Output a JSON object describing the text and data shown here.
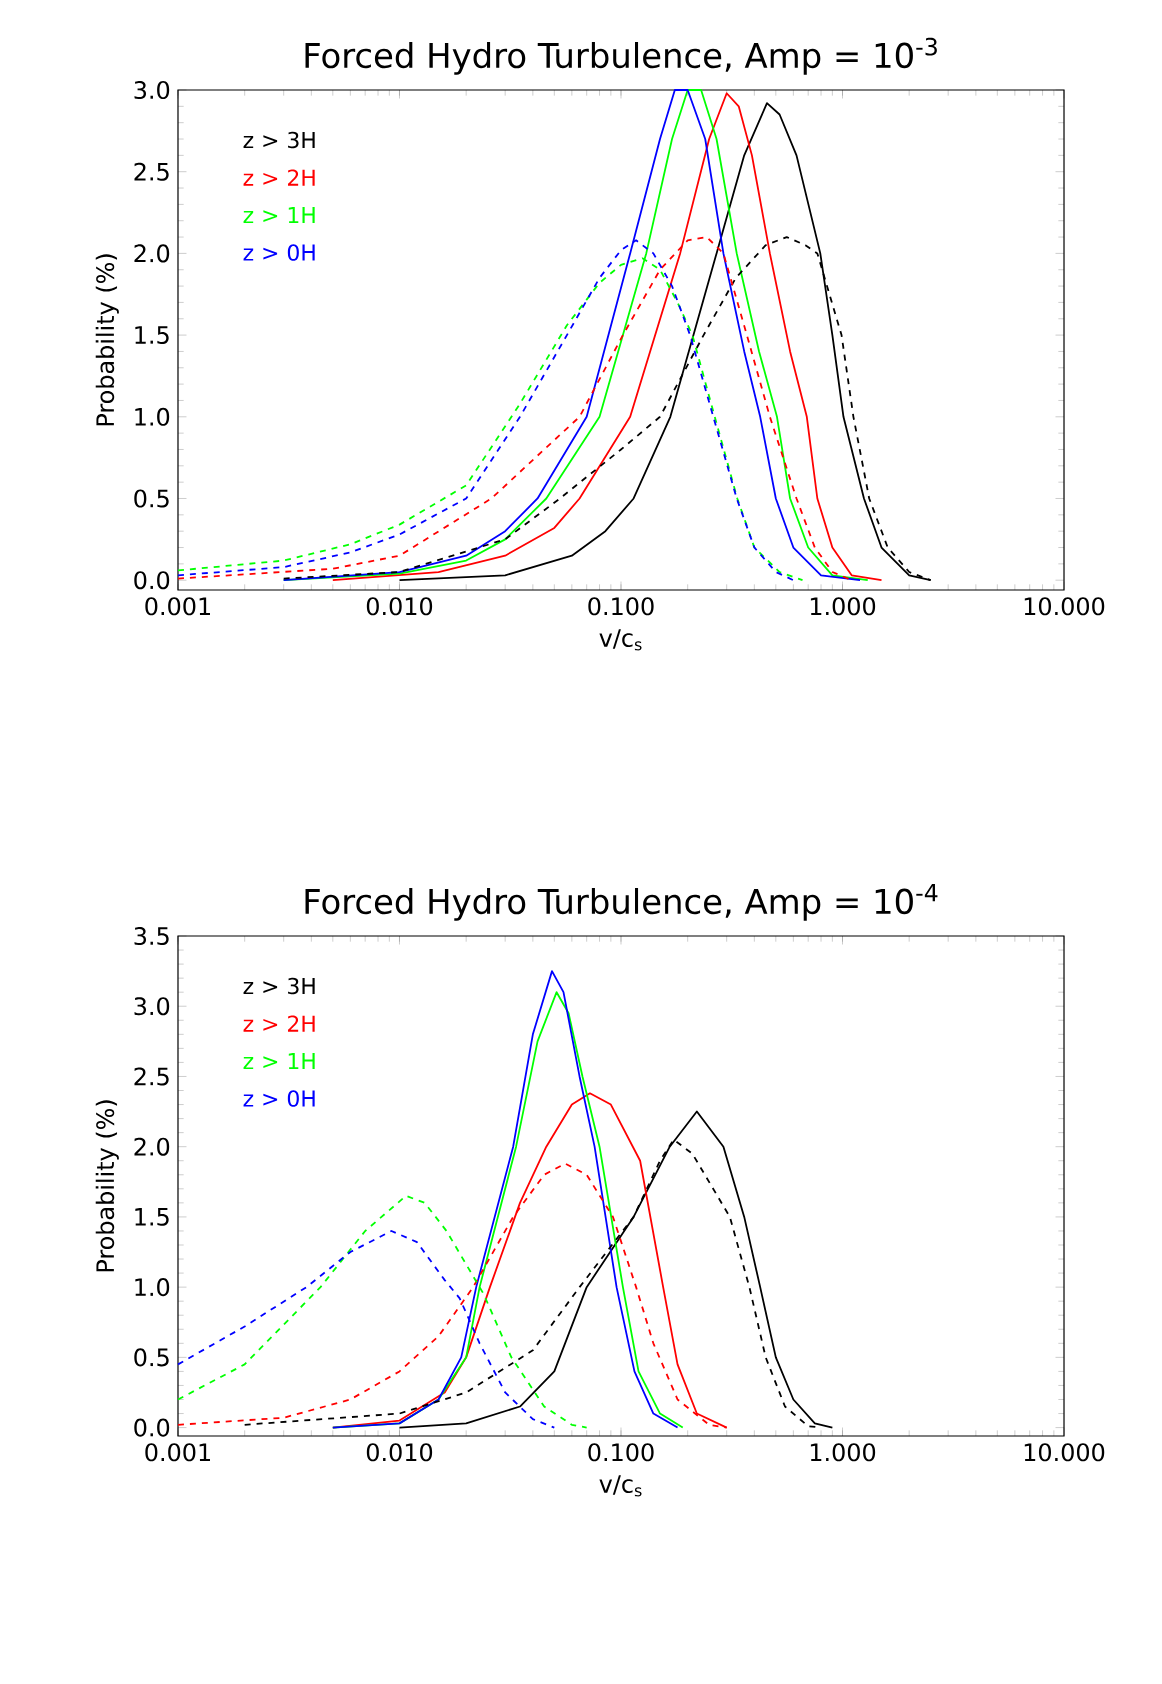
{
  "chart_data": [
    {
      "type": "line",
      "title": "Forced Hydro Turbulence, Amp = 10$^{-3}$",
      "xlabel": "v/c$_{s}$",
      "ylabel": "Probability (%)",
      "log": "x",
      "xlim": [
        0.001,
        10
      ],
      "ylim": [
        -0.06,
        3.0
      ],
      "xticks": [
        {
          "value": 0.001,
          "label": "0.001"
        },
        {
          "value": 0.01,
          "label": "0.010"
        },
        {
          "value": 0.1,
          "label": "0.100"
        },
        {
          "value": 1,
          "label": "1.000"
        },
        {
          "value": 10,
          "label": "10.000"
        }
      ],
      "yticks": [
        {
          "value": 0,
          "label": "0.0"
        },
        {
          "value": 0.5,
          "label": "0.5"
        },
        {
          "value": 1,
          "label": "1.0"
        },
        {
          "value": 1.5,
          "label": "1.5"
        },
        {
          "value": 2,
          "label": "2.0"
        },
        {
          "value": 2.5,
          "label": "2.5"
        },
        {
          "value": 3,
          "label": "3.0"
        }
      ],
      "legend": "top left",
      "grid": false,
      "marker": "none",
      "series": [
        {
          "name": "z > 3H",
          "color": "#000000",
          "line_style": "solid",
          "x": [
            0.01,
            0.03,
            0.06,
            0.085,
            0.114,
            0.167,
            0.27,
            0.36,
            0.456,
            0.52,
            0.62,
            0.794,
            0.9,
            1.01,
            1.25,
            1.5,
            2.0,
            2.5
          ],
          "values": [
            0,
            0.03,
            0.15,
            0.3,
            0.5,
            1.0,
            2.0,
            2.6,
            2.92,
            2.85,
            2.6,
            2.0,
            1.5,
            1.0,
            0.5,
            0.2,
            0.03,
            0
          ]
        },
        {
          "name": "z > 2H",
          "color": "#ff0000",
          "line_style": "solid",
          "x": [
            0.005,
            0.015,
            0.03,
            0.05,
            0.065,
            0.11,
            0.185,
            0.25,
            0.3,
            0.34,
            0.39,
            0.47,
            0.58,
            0.69,
            0.77,
            0.9,
            1.1,
            1.5
          ],
          "values": [
            0,
            0.05,
            0.15,
            0.32,
            0.5,
            1.0,
            2.0,
            2.7,
            2.98,
            2.9,
            2.6,
            2.0,
            1.4,
            1.0,
            0.5,
            0.2,
            0.03,
            0
          ]
        },
        {
          "name": "z > 1H",
          "color": "#00ff00",
          "line_style": "solid",
          "x": [
            0.003,
            0.01,
            0.02,
            0.03,
            0.046,
            0.08,
            0.13,
            0.17,
            0.2,
            0.23,
            0.27,
            0.333,
            0.42,
            0.506,
            0.58,
            0.7,
            0.9,
            1.3
          ],
          "values": [
            0,
            0.04,
            0.12,
            0.25,
            0.5,
            1.0,
            2.0,
            2.7,
            3.0,
            3.0,
            2.7,
            2.0,
            1.4,
            1.0,
            0.5,
            0.2,
            0.03,
            0
          ]
        },
        {
          "name": "z > 0H",
          "color": "#0000ff",
          "line_style": "solid",
          "x": [
            0.003,
            0.01,
            0.02,
            0.03,
            0.042,
            0.07,
            0.11,
            0.15,
            0.175,
            0.2,
            0.24,
            0.29,
            0.36,
            0.425,
            0.5,
            0.6,
            0.8,
            1.2
          ],
          "values": [
            0,
            0.05,
            0.15,
            0.3,
            0.5,
            1.0,
            2.0,
            2.7,
            3.0,
            3.0,
            2.7,
            2.0,
            1.4,
            1.0,
            0.5,
            0.2,
            0.03,
            0
          ]
        },
        {
          "color": "#000000",
          "line_style": "dashed",
          "x": [
            0.003,
            0.01,
            0.03,
            0.053,
            0.1,
            0.15,
            0.236,
            0.33,
            0.45,
            0.56,
            0.68,
            0.77,
            0.99,
            1.12,
            1.32,
            1.6,
            2.0,
            2.5
          ],
          "values": [
            0.01,
            0.05,
            0.25,
            0.5,
            0.8,
            1.0,
            1.5,
            1.85,
            2.05,
            2.1,
            2.05,
            2.0,
            1.5,
            1.0,
            0.5,
            0.2,
            0.05,
            0
          ]
        },
        {
          "color": "#ff0000",
          "line_style": "dashed",
          "x": [
            0.001,
            0.005,
            0.01,
            0.026,
            0.045,
            0.065,
            0.102,
            0.15,
            0.2,
            0.244,
            0.29,
            0.37,
            0.47,
            0.62,
            0.75,
            0.9,
            1.1
          ],
          "values": [
            0.01,
            0.07,
            0.15,
            0.5,
            0.8,
            1.0,
            1.5,
            1.9,
            2.08,
            2.1,
            2.0,
            1.5,
            1.0,
            0.5,
            0.2,
            0.05,
            0
          ]
        },
        {
          "color": "#00ff00",
          "line_style": "dashed",
          "x": [
            0.001,
            0.003,
            0.006,
            0.01,
            0.02,
            0.035,
            0.057,
            0.08,
            0.1,
            0.125,
            0.15,
            0.18,
            0.21,
            0.265,
            0.335,
            0.4,
            0.52,
            0.66
          ],
          "values": [
            0.06,
            0.12,
            0.22,
            0.34,
            0.58,
            1.08,
            1.56,
            1.82,
            1.93,
            1.97,
            1.9,
            1.7,
            1.5,
            1.0,
            0.5,
            0.2,
            0.05,
            0
          ]
        },
        {
          "color": "#0000ff",
          "line_style": "dashed",
          "x": [
            0.001,
            0.003,
            0.006,
            0.01,
            0.02,
            0.035,
            0.057,
            0.08,
            0.1,
            0.117,
            0.14,
            0.17,
            0.205,
            0.261,
            0.333,
            0.4,
            0.5,
            0.6
          ],
          "values": [
            0.03,
            0.08,
            0.17,
            0.28,
            0.5,
            1.0,
            1.5,
            1.85,
            2.02,
            2.08,
            2.0,
            1.8,
            1.5,
            1.0,
            0.5,
            0.2,
            0.05,
            0
          ]
        }
      ]
    },
    {
      "type": "line",
      "title": "Forced Hydro Turbulence, Amp = 10$^{-4}$",
      "xlabel": "v/c$_{s}$",
      "ylabel": "Probability (%)",
      "log": "x",
      "xlim": [
        0.001,
        10
      ],
      "ylim": [
        -0.06,
        3.5
      ],
      "xticks": [
        {
          "value": 0.001,
          "label": "0.001"
        },
        {
          "value": 0.01,
          "label": "0.010"
        },
        {
          "value": 0.1,
          "label": "0.100"
        },
        {
          "value": 1,
          "label": "1.000"
        },
        {
          "value": 10,
          "label": "10.000"
        }
      ],
      "yticks": [
        {
          "value": 0,
          "label": "0.0"
        },
        {
          "value": 0.5,
          "label": "0.5"
        },
        {
          "value": 1,
          "label": "1.0"
        },
        {
          "value": 1.5,
          "label": "1.5"
        },
        {
          "value": 2,
          "label": "2.0"
        },
        {
          "value": 2.5,
          "label": "2.5"
        },
        {
          "value": 3,
          "label": "3.0"
        },
        {
          "value": 3.5,
          "label": "3.5"
        }
      ],
      "legend": "top left",
      "grid": false,
      "marker": "none",
      "series": [
        {
          "name": "z > 3H",
          "color": "#000000",
          "line_style": "solid",
          "x": [
            0.01,
            0.02,
            0.035,
            0.05,
            0.07,
            0.114,
            0.166,
            0.22,
            0.29,
            0.36,
            0.425,
            0.5,
            0.6,
            0.75,
            0.9
          ],
          "values": [
            0,
            0.03,
            0.15,
            0.4,
            1.0,
            1.5,
            2.0,
            2.25,
            2.0,
            1.5,
            1.0,
            0.5,
            0.2,
            0.03,
            0
          ]
        },
        {
          "name": "z > 2H",
          "color": "#ff0000",
          "line_style": "solid",
          "x": [
            0.005,
            0.01,
            0.016,
            0.02,
            0.0256,
            0.035,
            0.046,
            0.06,
            0.0724,
            0.09,
            0.122,
            0.155,
            0.18,
            0.22,
            0.3
          ],
          "values": [
            0,
            0.05,
            0.25,
            0.5,
            1.0,
            1.6,
            2.0,
            2.3,
            2.38,
            2.3,
            1.9,
            1.0,
            0.45,
            0.1,
            0
          ]
        },
        {
          "name": "z > 1H",
          "color": "#00ff00",
          "line_style": "solid",
          "x": [
            0.005,
            0.01,
            0.015,
            0.02,
            0.023,
            0.0336,
            0.042,
            0.0512,
            0.058,
            0.067,
            0.08,
            0.102,
            0.12,
            0.15,
            0.19
          ],
          "values": [
            0,
            0.03,
            0.2,
            0.5,
            1.0,
            2.0,
            2.75,
            3.1,
            2.95,
            2.5,
            2.0,
            1.0,
            0.4,
            0.1,
            0
          ]
        },
        {
          "name": "z > 0H",
          "color": "#0000ff",
          "line_style": "solid",
          "x": [
            0.005,
            0.01,
            0.015,
            0.019,
            0.0222,
            0.0326,
            0.04,
            0.0488,
            0.055,
            0.065,
            0.076,
            0.0955,
            0.115,
            0.14,
            0.18
          ],
          "values": [
            0,
            0.03,
            0.2,
            0.5,
            1.0,
            2.0,
            2.8,
            3.25,
            3.1,
            2.5,
            2.0,
            1.0,
            0.4,
            0.1,
            0
          ]
        },
        {
          "color": "#000000",
          "line_style": "dashed",
          "x": [
            0.002,
            0.01,
            0.02,
            0.04,
            0.065,
            0.114,
            0.15,
            0.173,
            0.21,
            0.31,
            0.38,
            0.45,
            0.55,
            0.7,
            0.8
          ],
          "values": [
            0.02,
            0.1,
            0.25,
            0.55,
            1.0,
            1.5,
            1.9,
            2.05,
            1.95,
            1.5,
            1.0,
            0.5,
            0.15,
            0.01,
            0
          ]
        },
        {
          "color": "#ff0000",
          "line_style": "dashed",
          "x": [
            0.001,
            0.003,
            0.006,
            0.01,
            0.015,
            0.0215,
            0.0326,
            0.045,
            0.056,
            0.07,
            0.092,
            0.117,
            0.14,
            0.18,
            0.25,
            0.3
          ],
          "values": [
            0.02,
            0.07,
            0.2,
            0.4,
            0.65,
            1.0,
            1.5,
            1.8,
            1.88,
            1.8,
            1.5,
            1.0,
            0.6,
            0.2,
            0.02,
            0
          ]
        },
        {
          "color": "#00ff00",
          "line_style": "dashed",
          "x": [
            0.001,
            0.002,
            0.0044,
            0.007,
            0.0107,
            0.013,
            0.0163,
            0.024,
            0.032,
            0.045,
            0.06,
            0.07
          ],
          "values": [
            0.2,
            0.45,
            1.0,
            1.4,
            1.65,
            1.6,
            1.4,
            0.95,
            0.5,
            0.15,
            0.02,
            0
          ]
        },
        {
          "color": "#0000ff",
          "line_style": "dashed",
          "x": [
            0.001,
            0.002,
            0.0038,
            0.006,
            0.0092,
            0.012,
            0.016,
            0.0187,
            0.023,
            0.03,
            0.04,
            0.05
          ],
          "values": [
            0.45,
            0.72,
            1.0,
            1.25,
            1.4,
            1.32,
            1.05,
            0.92,
            0.6,
            0.25,
            0.06,
            0
          ]
        }
      ]
    }
  ]
}
